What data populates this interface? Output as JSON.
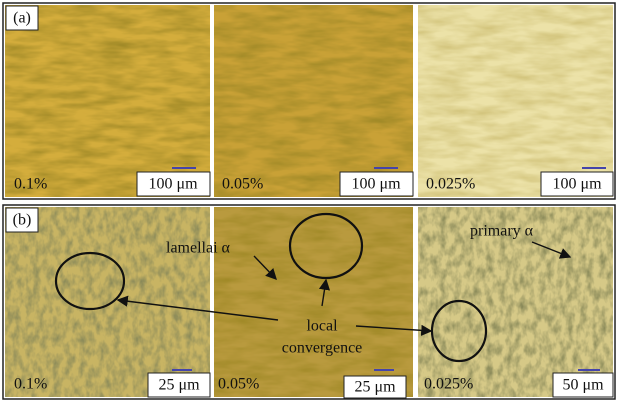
{
  "panels": [
    {
      "label": "(a)",
      "images": [
        {
          "concentration": "0.1%",
          "scale": "100 μm"
        },
        {
          "concentration": "0.05%",
          "scale": "100 μm"
        },
        {
          "concentration": "0.025%",
          "scale": "100 μm"
        }
      ]
    },
    {
      "label": "(b)",
      "images": [
        {
          "concentration": "0.1%",
          "scale": "25 μm"
        },
        {
          "concentration": "0.05%",
          "scale": "25 μm"
        },
        {
          "concentration": "0.025%",
          "scale": "50 μm"
        }
      ],
      "annotations": {
        "lamellar": "lamellai α",
        "primary": "primary α",
        "convergence": [
          "local",
          "convergence"
        ]
      }
    }
  ]
}
